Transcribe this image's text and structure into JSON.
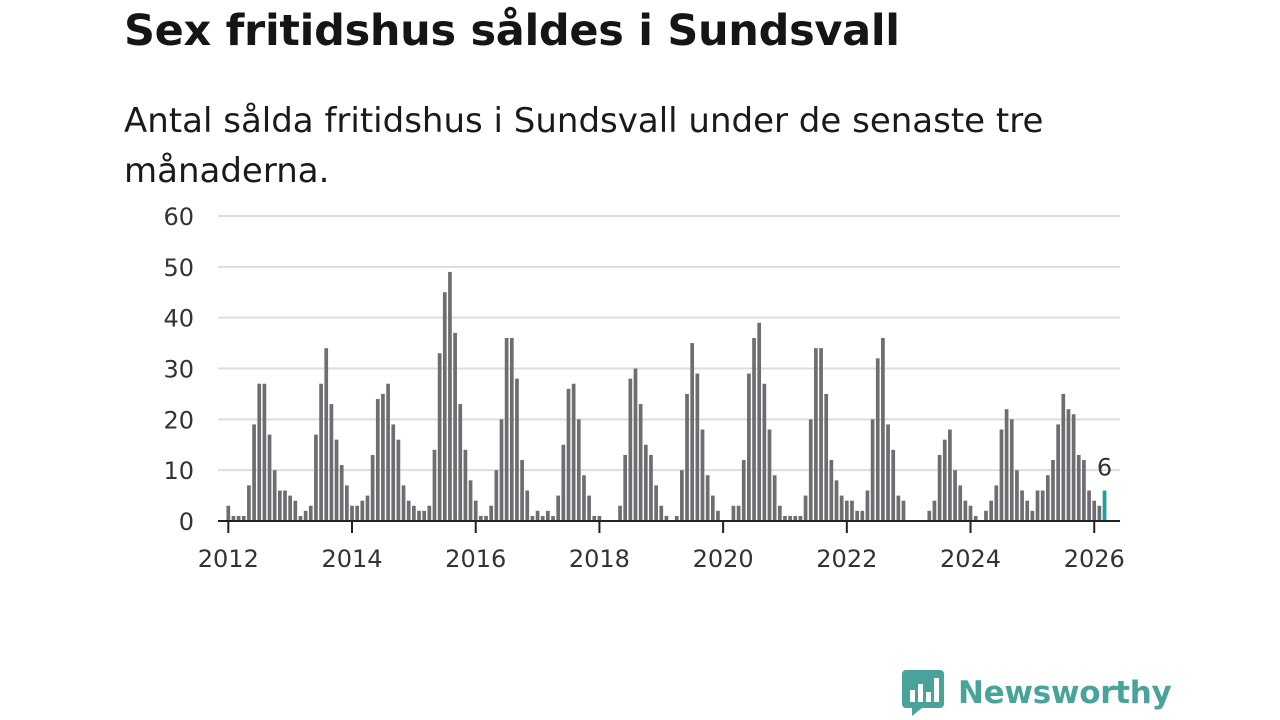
{
  "title": "Sex fritidshus såldes i Sundsvall",
  "subtitle": "Antal sålda fritidshus i Sundsvall under de senaste tre månaderna.",
  "logo": {
    "text": "Newsworthy",
    "icon": "bar-chart-speech-bubble-icon"
  },
  "colors": {
    "bar": "#6e6e72",
    "highlight": "#1aa39c",
    "logo": "#4aa39b"
  },
  "chart_data": {
    "type": "bar",
    "title": "Sex fritidshus såldes i Sundsvall",
    "subtitle": "Antal sålda fritidshus i Sundsvall under de senaste tre månaderna.",
    "xlabel": "",
    "ylabel": "",
    "ylim": [
      0,
      60
    ],
    "yticks": [
      0,
      10,
      20,
      30,
      40,
      50,
      60
    ],
    "xticks": [
      "2012",
      "2014",
      "2016",
      "2018",
      "2020",
      "2022",
      "2024",
      "2026"
    ],
    "xlim": [
      "2011-11",
      "2026-06"
    ],
    "grid": true,
    "start_month": "2012-01",
    "values": [
      3,
      1,
      1,
      1,
      7,
      19,
      27,
      27,
      17,
      10,
      6,
      6,
      5,
      4,
      1,
      2,
      3,
      17,
      27,
      34,
      23,
      16,
      11,
      7,
      3,
      3,
      4,
      5,
      13,
      24,
      25,
      27,
      19,
      16,
      7,
      4,
      3,
      2,
      2,
      3,
      14,
      33,
      45,
      49,
      37,
      23,
      14,
      8,
      4,
      1,
      1,
      3,
      10,
      20,
      36,
      36,
      28,
      12,
      6,
      1,
      2,
      1,
      2,
      1,
      5,
      15,
      26,
      27,
      20,
      9,
      5,
      1,
      1,
      0,
      0,
      0,
      3,
      13,
      28,
      30,
      23,
      15,
      13,
      7,
      3,
      1,
      0,
      1,
      10,
      25,
      35,
      29,
      18,
      9,
      5,
      2,
      0,
      0,
      3,
      3,
      12,
      29,
      36,
      39,
      27,
      18,
      9,
      3,
      1,
      1,
      1,
      1,
      5,
      20,
      34,
      34,
      25,
      12,
      8,
      5,
      4,
      4,
      2,
      2,
      6,
      20,
      32,
      36,
      19,
      14,
      5,
      4,
      0,
      0,
      0,
      0,
      2,
      4,
      13,
      16,
      18,
      10,
      7,
      4,
      3,
      1,
      0,
      2,
      4,
      7,
      18,
      22,
      20,
      10,
      6,
      4,
      2,
      6,
      6,
      9,
      12,
      19,
      25,
      22,
      21,
      13,
      12,
      6,
      4,
      3,
      6
    ],
    "highlight": {
      "month": "2026-03",
      "value": 6,
      "label": "6"
    }
  }
}
